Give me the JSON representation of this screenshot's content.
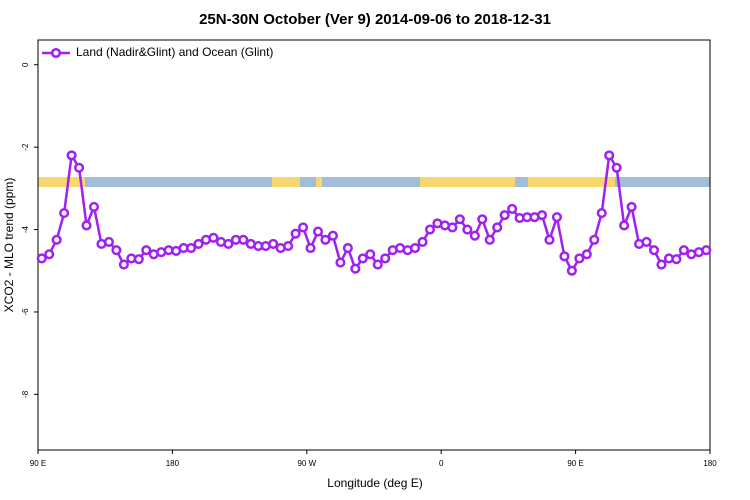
{
  "chart_data": {
    "type": "line",
    "title": "25N-30N October (Ver 9)   2014-09-06 to 2018-12-31",
    "x_label": "Longitude (deg E)",
    "y_label": "XCO2 - MLO trend (ppm)",
    "x": [
      92.5,
      97.5,
      102.5,
      107.5,
      112.5,
      117.5,
      122.5,
      127.5,
      132.5,
      137.5,
      142.5,
      147.5,
      152.5,
      157.5,
      162.5,
      167.5,
      172.5,
      177.5,
      182.5,
      187.5,
      192.5,
      197.5,
      202.5,
      207.5,
      212.5,
      217.5,
      222.5,
      227.5,
      232.5,
      237.5,
      242.5,
      247.5,
      252.5,
      257.5,
      262.5,
      267.5,
      272.5,
      277.5,
      282.5,
      287.5,
      292.5,
      297.5,
      302.5,
      307.5,
      312.5,
      317.5,
      322.5,
      327.5,
      332.5,
      337.5,
      342.5,
      347.5,
      352.5,
      357.5,
      362.5,
      367.5,
      372.5,
      377.5,
      382.5,
      387.5,
      392.5,
      397.5,
      402.5,
      407.5,
      412.5,
      417.5,
      422.5,
      427.5,
      432.5,
      437.5,
      442.5,
      447.5,
      452.5,
      457.5,
      462.5,
      467.5,
      472.5,
      477.5,
      482.5,
      487.5,
      492.5,
      497.5,
      502.5,
      507.5,
      512.5,
      517.5,
      522.5,
      527.5,
      532.5,
      537.5
    ],
    "series": [
      {
        "name": "Land (Nadir&Glint) and Ocean (Glint)",
        "color": "#a020f0",
        "values": [
          -4.7,
          -4.6,
          -4.25,
          -3.6,
          -2.2,
          -2.5,
          -3.9,
          -3.45,
          -4.35,
          -4.3,
          -4.5,
          -4.85,
          -4.7,
          -4.72,
          -4.5,
          -4.6,
          -4.55,
          -4.5,
          -4.52,
          -4.45,
          -4.45,
          -4.35,
          -4.25,
          -4.2,
          -4.3,
          -4.35,
          -4.25,
          -4.25,
          -4.35,
          -4.4,
          -4.4,
          -4.35,
          -4.45,
          -4.4,
          -4.1,
          -3.95,
          -4.45,
          -4.05,
          -4.25,
          -4.15,
          -4.8,
          -4.45,
          -4.95,
          -4.7,
          -4.6,
          -4.85,
          -4.7,
          -4.5,
          -4.45,
          -4.5,
          -4.45,
          -4.3,
          -4.0,
          -3.85,
          -3.9,
          -3.95,
          -3.75,
          -4.0,
          -4.15,
          -3.75,
          -4.25,
          -3.95,
          -3.65,
          -3.5,
          -3.72,
          -3.7,
          -3.7,
          -3.65,
          -4.25,
          -3.7,
          -4.65,
          -5.0,
          -4.7,
          -4.6,
          -4.25,
          -3.6,
          -2.2,
          -2.5,
          -3.9,
          -3.45,
          -4.35,
          -4.3,
          -4.5,
          -4.85,
          -4.7,
          -4.72,
          -4.5,
          -4.6,
          -4.55,
          -4.5
        ]
      }
    ],
    "xlim": [
      90,
      540
    ],
    "ylim": [
      -9.35,
      0.6
    ],
    "xticks": [
      {
        "value": 90,
        "label": "90 E"
      },
      180,
      {
        "value": 270,
        "label": "90 W"
      },
      {
        "value": 360,
        "label": "0"
      },
      {
        "value": 450,
        "label": "90 E"
      },
      {
        "value": 540,
        "label": "180"
      }
    ],
    "yticks": [
      0,
      -2,
      -4,
      -6,
      -8
    ],
    "legend": "top-left"
  }
}
